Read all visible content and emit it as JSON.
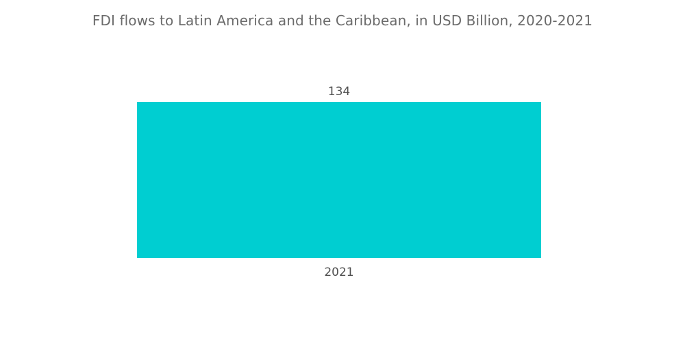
{
  "chart_data": {
    "type": "bar",
    "title": "FDI flows to Latin America and the Caribbean, in USD Billion, 2020-2021",
    "categories": [
      "2021"
    ],
    "values": [
      134
    ],
    "data_labels": [
      "134"
    ],
    "xlabel": "",
    "ylabel": "",
    "ylim": [
      0,
      134
    ],
    "grid": false,
    "legend": "none",
    "colors": {
      "bar": "#00ced1"
    }
  }
}
